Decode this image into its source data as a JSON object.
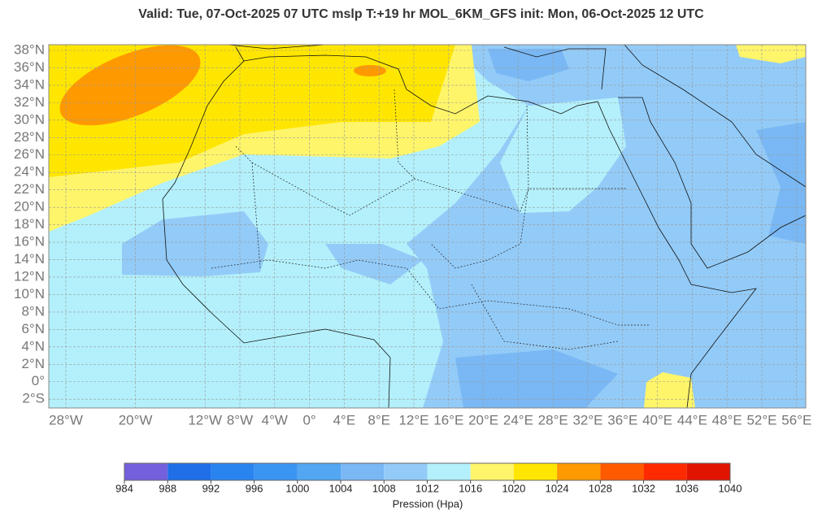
{
  "map": {
    "title": "Valid: Tue, 07-Oct-2025   07 UTC   mslp   T:+19 hr   MOL_6KM_GFS      init: Mon, 06-Oct-2025   12 UTC",
    "lon_ticks": [
      {
        "value": -28,
        "label": "28°W"
      },
      {
        "value": -20,
        "label": "20°W"
      },
      {
        "value": -12,
        "label": "12°W"
      },
      {
        "value": -8,
        "label": "8°W"
      },
      {
        "value": -4,
        "label": "4°W"
      },
      {
        "value": 0,
        "label": "0°"
      },
      {
        "value": 4,
        "label": "4°E"
      },
      {
        "value": 8,
        "label": "8°E"
      },
      {
        "value": 12,
        "label": "12°E"
      },
      {
        "value": 16,
        "label": "16°E"
      },
      {
        "value": 20,
        "label": "20°E"
      },
      {
        "value": 24,
        "label": "24°E"
      },
      {
        "value": 28,
        "label": "28°E"
      },
      {
        "value": 32,
        "label": "32°E"
      },
      {
        "value": 36,
        "label": "36°E"
      },
      {
        "value": 40,
        "label": "40°E"
      },
      {
        "value": 44,
        "label": "44°E"
      },
      {
        "value": 48,
        "label": "48°E"
      },
      {
        "value": 52,
        "label": "52°E"
      },
      {
        "value": 56,
        "label": "56°E"
      }
    ],
    "lat_ticks": [
      {
        "value": 38,
        "label": "38°N"
      },
      {
        "value": 36,
        "label": "36°N"
      },
      {
        "value": 34,
        "label": "34°N"
      },
      {
        "value": 32,
        "label": "32°N"
      },
      {
        "value": 30,
        "label": "30°N"
      },
      {
        "value": 28,
        "label": "28°N"
      },
      {
        "value": 26,
        "label": "26°N"
      },
      {
        "value": 24,
        "label": "24°N"
      },
      {
        "value": 22,
        "label": "22°N"
      },
      {
        "value": 20,
        "label": "20°N"
      },
      {
        "value": 18,
        "label": "18°N"
      },
      {
        "value": 16,
        "label": "16°N"
      },
      {
        "value": 14,
        "label": "14°N"
      },
      {
        "value": 12,
        "label": "12°N"
      },
      {
        "value": 10,
        "label": "10°N"
      },
      {
        "value": 8,
        "label": "8°N"
      },
      {
        "value": 6,
        "label": "6°N"
      },
      {
        "value": 4,
        "label": "4°N"
      },
      {
        "value": 2,
        "label": "2°N"
      },
      {
        "value": 0,
        "label": "0°"
      },
      {
        "value": -2,
        "label": "2°S"
      }
    ],
    "colorbar": {
      "label": "Pression (Hpa)",
      "ticks": [
        984,
        988,
        992,
        996,
        1000,
        1004,
        1008,
        1012,
        1016,
        1020,
        1024,
        1028,
        1032,
        1036,
        1040
      ],
      "colors": [
        "#7460dc",
        "#1e6fe8",
        "#2a84f0",
        "#3a95f2",
        "#52a6f2",
        "#79b8f4",
        "#93cbf8",
        "#b3f0fb",
        "#fff56b",
        "#ffe600",
        "#ff9900",
        "#ff5a00",
        "#ff2a00",
        "#e01400"
      ]
    }
  }
}
